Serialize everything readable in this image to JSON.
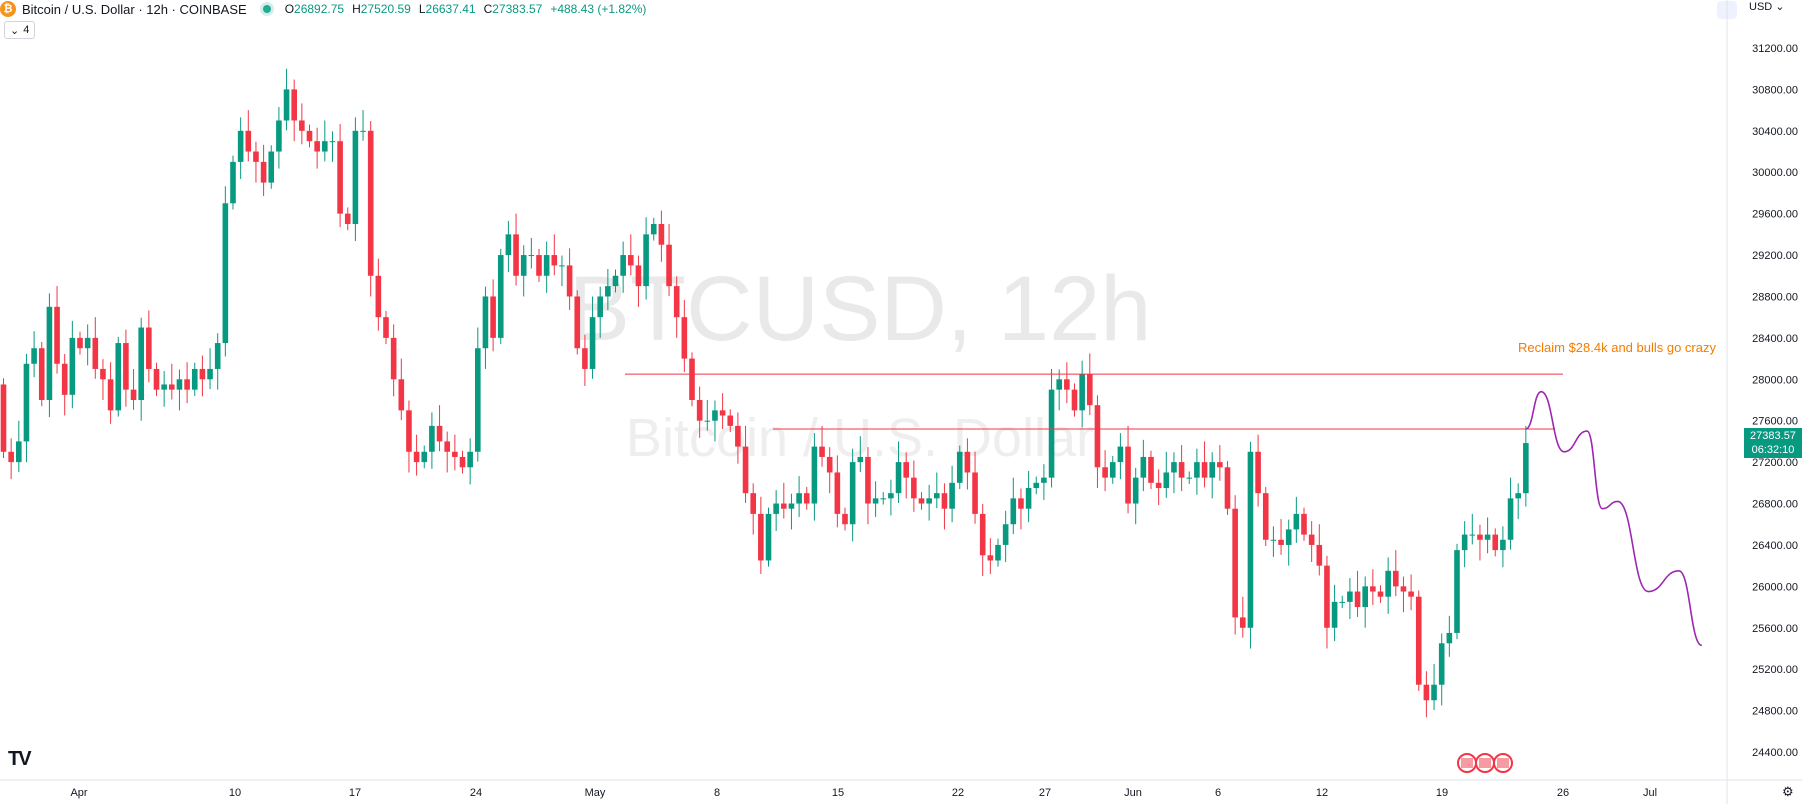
{
  "header": {
    "symbol_full": "Bitcoin / U.S. Dollar · 12h · COINBASE",
    "coin_glyph": "₿",
    "ohlc": {
      "open_label": "O",
      "open": "26892.75",
      "high_label": "H",
      "high": "27520.59",
      "low_label": "L",
      "low": "26637.41",
      "close_label": "C",
      "close": "27383.57",
      "change": "+488.43 (+1.82%)"
    },
    "collapse_count": "4",
    "currency": "USD"
  },
  "watermark": {
    "line1": "BTCUSD, 12h",
    "line2": "Bitcoin / U.S. Dollar"
  },
  "price_label": {
    "price": "27383.57",
    "countdown": "06:32:10"
  },
  "annotation": {
    "text": "Reclaim $28.4k and bulls go crazy"
  },
  "colors": {
    "up": "#089981",
    "down": "#f23645",
    "line": "#f23645",
    "annotation": "#f57c00",
    "projection": "#9c27b0"
  },
  "chart_data": {
    "type": "candlestick",
    "y_ticks": [
      "31200.00",
      "30800.00",
      "30400.00",
      "30000.00",
      "29600.00",
      "29200.00",
      "28800.00",
      "28400.00",
      "28000.00",
      "27600.00",
      "27200.00",
      "26800.00",
      "26400.00",
      "26000.00",
      "25600.00",
      "25200.00",
      "24800.00",
      "24400.00"
    ],
    "x_ticks": [
      "Apr",
      "10",
      "17",
      "24",
      "May",
      "8",
      "15",
      "22",
      "27",
      "Jun",
      "6",
      "12",
      "19",
      "26",
      "Jul"
    ],
    "ylim": [
      24200,
      31500
    ],
    "horizontal_levels": [
      28050,
      27520
    ],
    "projection_path": [
      [
        27520,
        0
      ],
      [
        27880,
        2
      ],
      [
        27300,
        5
      ],
      [
        27500,
        8
      ],
      [
        26750,
        10
      ],
      [
        26820,
        12
      ],
      [
        25950,
        16
      ],
      [
        26150,
        20
      ],
      [
        25430,
        23
      ]
    ],
    "candles": [
      [
        27950,
        27300
      ],
      [
        27300,
        27200
      ],
      [
        27200,
        27400
      ],
      [
        27400,
        28150
      ],
      [
        28150,
        28300
      ],
      [
        28300,
        27800
      ],
      [
        27800,
        28700
      ],
      [
        28700,
        28150
      ],
      [
        28150,
        27850
      ],
      [
        27850,
        28400
      ],
      [
        28400,
        28300
      ],
      [
        28300,
        28400
      ],
      [
        28400,
        28100
      ],
      [
        28100,
        28000
      ],
      [
        28000,
        27700
      ],
      [
        27700,
        28350
      ],
      [
        28350,
        27900
      ],
      [
        27900,
        27800
      ],
      [
        27800,
        28500
      ],
      [
        28500,
        28100
      ],
      [
        28100,
        27900
      ],
      [
        27900,
        27950
      ],
      [
        27950,
        27900
      ],
      [
        27900,
        28000
      ],
      [
        28000,
        27900
      ],
      [
        27900,
        28100
      ],
      [
        28100,
        28000
      ],
      [
        28000,
        28100
      ],
      [
        28100,
        28350
      ],
      [
        28350,
        29700
      ],
      [
        29700,
        30100
      ],
      [
        30100,
        30400
      ],
      [
        30400,
        30200
      ],
      [
        30200,
        30100
      ],
      [
        30100,
        29900
      ],
      [
        29900,
        30200
      ],
      [
        30200,
        30500
      ],
      [
        30500,
        30800
      ],
      [
        30800,
        30500
      ],
      [
        30500,
        30400
      ],
      [
        30400,
        30300
      ],
      [
        30300,
        30200
      ],
      [
        30200,
        30300
      ],
      [
        30300,
        30300
      ],
      [
        30300,
        29600
      ],
      [
        29600,
        29500
      ],
      [
        29500,
        30400
      ],
      [
        30400,
        30400
      ],
      [
        30400,
        29000
      ],
      [
        29000,
        28600
      ],
      [
        28600,
        28400
      ],
      [
        28400,
        28000
      ],
      [
        28000,
        27700
      ],
      [
        27700,
        27300
      ],
      [
        27300,
        27200
      ],
      [
        27200,
        27300
      ],
      [
        27300,
        27550
      ],
      [
        27550,
        27400
      ],
      [
        27400,
        27300
      ],
      [
        27300,
        27250
      ],
      [
        27250,
        27150
      ],
      [
        27150,
        27300
      ],
      [
        27300,
        28300
      ],
      [
        28300,
        28800
      ],
      [
        28800,
        28400
      ],
      [
        28400,
        29200
      ],
      [
        29200,
        29400
      ],
      [
        29400,
        29000
      ],
      [
        29000,
        29200
      ],
      [
        29200,
        29200
      ],
      [
        29200,
        29000
      ],
      [
        29000,
        29200
      ],
      [
        29200,
        29100
      ],
      [
        29100,
        29100
      ],
      [
        29100,
        28800
      ],
      [
        28800,
        28300
      ],
      [
        28300,
        28100
      ],
      [
        28100,
        28600
      ],
      [
        28600,
        28800
      ],
      [
        28800,
        28900
      ],
      [
        28900,
        29000
      ],
      [
        29000,
        29200
      ],
      [
        29200,
        29100
      ],
      [
        29100,
        28900
      ],
      [
        28900,
        29400
      ],
      [
        29400,
        29500
      ],
      [
        29500,
        29300
      ],
      [
        29300,
        28900
      ],
      [
        28900,
        28600
      ],
      [
        28600,
        28200
      ],
      [
        28200,
        27800
      ],
      [
        27800,
        27600
      ],
      [
        27600,
        27600
      ],
      [
        27600,
        27700
      ],
      [
        27700,
        27650
      ],
      [
        27650,
        27550
      ],
      [
        27550,
        27350
      ],
      [
        27350,
        26900
      ],
      [
        26900,
        26700
      ],
      [
        26700,
        26250
      ],
      [
        26250,
        26700
      ],
      [
        26700,
        26800
      ],
      [
        26800,
        26750
      ],
      [
        26750,
        26800
      ],
      [
        26800,
        26900
      ],
      [
        26900,
        26800
      ],
      [
        26800,
        27350
      ],
      [
        27350,
        27250
      ],
      [
        27250,
        27100
      ],
      [
        27100,
        26700
      ],
      [
        26700,
        26600
      ],
      [
        26600,
        27200
      ],
      [
        27200,
        27250
      ],
      [
        27250,
        26800
      ],
      [
        26800,
        26850
      ],
      [
        26850,
        26850
      ],
      [
        26850,
        26900
      ],
      [
        26900,
        27200
      ],
      [
        27200,
        27050
      ],
      [
        27050,
        26850
      ],
      [
        26850,
        26800
      ],
      [
        26800,
        26850
      ],
      [
        26850,
        26900
      ],
      [
        26900,
        26750
      ],
      [
        26750,
        27000
      ],
      [
        27000,
        27300
      ],
      [
        27300,
        27100
      ],
      [
        27100,
        26700
      ],
      [
        26700,
        26300
      ],
      [
        26300,
        26250
      ],
      [
        26250,
        26400
      ],
      [
        26400,
        26600
      ],
      [
        26600,
        26850
      ],
      [
        26850,
        26750
      ],
      [
        26750,
        26950
      ],
      [
        26950,
        27000
      ],
      [
        27000,
        27050
      ],
      [
        27050,
        27900
      ],
      [
        27900,
        28000
      ],
      [
        28000,
        27900
      ],
      [
        27900,
        27700
      ],
      [
        27700,
        28050
      ],
      [
        28050,
        27750
      ],
      [
        27750,
        27150
      ],
      [
        27150,
        27050
      ],
      [
        27050,
        27200
      ],
      [
        27200,
        27350
      ],
      [
        27350,
        26800
      ],
      [
        26800,
        27050
      ],
      [
        27050,
        27250
      ],
      [
        27250,
        27000
      ],
      [
        27000,
        26950
      ],
      [
        26950,
        27100
      ],
      [
        27100,
        27200
      ],
      [
        27200,
        27050
      ],
      [
        27050,
        27050
      ],
      [
        27050,
        27200
      ],
      [
        27200,
        27050
      ],
      [
        27050,
        27200
      ],
      [
        27200,
        27150
      ],
      [
        27150,
        26750
      ],
      [
        26750,
        25700
      ],
      [
        25700,
        25600
      ],
      [
        25600,
        27300
      ],
      [
        27300,
        26900
      ],
      [
        26900,
        26450
      ],
      [
        26450,
        26450
      ],
      [
        26450,
        26400
      ],
      [
        26400,
        26550
      ],
      [
        26550,
        26700
      ],
      [
        26700,
        26500
      ],
      [
        26500,
        26400
      ],
      [
        26400,
        26200
      ],
      [
        26200,
        25600
      ],
      [
        25600,
        25850
      ],
      [
        25850,
        25850
      ],
      [
        25850,
        25950
      ],
      [
        25950,
        25800
      ],
      [
        25800,
        26000
      ],
      [
        26000,
        25950
      ],
      [
        25950,
        25900
      ],
      [
        25900,
        26150
      ],
      [
        26150,
        26000
      ],
      [
        26000,
        25950
      ],
      [
        25950,
        25900
      ],
      [
        25900,
        25050
      ],
      [
        25050,
        24900
      ],
      [
        24900,
        25050
      ],
      [
        25050,
        25450
      ],
      [
        25450,
        25550
      ],
      [
        25550,
        26350
      ],
      [
        26350,
        26500
      ],
      [
        26500,
        26500
      ],
      [
        26500,
        26450
      ],
      [
        26450,
        26500
      ],
      [
        26500,
        26350
      ],
      [
        26350,
        26450
      ],
      [
        26450,
        26850
      ],
      [
        26850,
        26900
      ],
      [
        26900,
        27384
      ]
    ]
  },
  "icons": [
    "tradingview-logo-icon",
    "settings-gear-icon",
    "us-flag-icon"
  ]
}
